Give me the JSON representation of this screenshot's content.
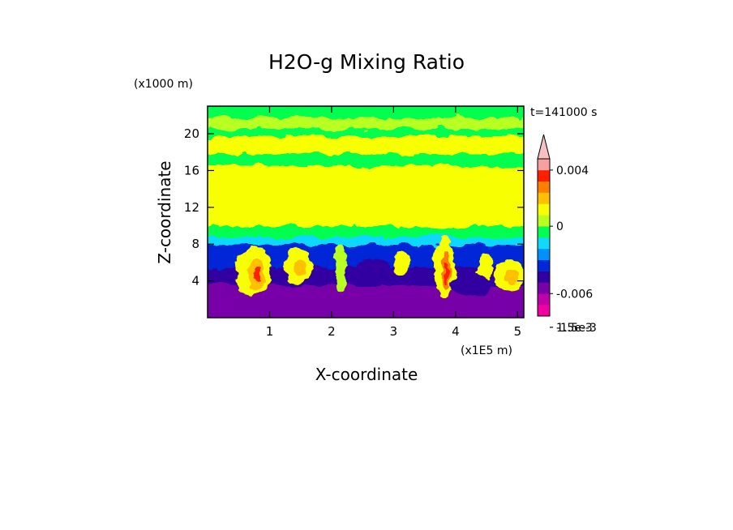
{
  "chart_data": {
    "type": "heatmap",
    "title": "H2O-g Mixing Ratio",
    "xlabel": "X-coordinate",
    "ylabel": "Z-coordinate",
    "x_unit": "(x1E5 m)",
    "y_unit": "(x1000 m)",
    "time_label": "t=141000 s",
    "xlim": [
      0,
      5.1
    ],
    "ylim": [
      0,
      23
    ],
    "x_ticks": [
      1,
      2,
      3,
      4,
      5
    ],
    "y_ticks": [
      4,
      8,
      12,
      16,
      20
    ],
    "colorbar": {
      "levels": [
        "-0.009",
        "-0.0075",
        "-0.006",
        "-0.0045",
        "-0.003",
        "-0.0022",
        "-0.0015",
        "-0.0008",
        "0",
        "0.0008",
        "0.0015",
        "0.0022",
        "0.003",
        "0.004",
        "0.005"
      ],
      "colors": [
        "#f000a0",
        "#c000a8",
        "#7800a8",
        "#3000a0",
        "#0028d8",
        "#0090ff",
        "#10d8ff",
        "#00ff50",
        "#b8ff20",
        "#f8ff00",
        "#ffc000",
        "#ff8000",
        "#ff2000",
        "#f8a0a0"
      ],
      "labels": [
        "0.004",
        "1.5e-3",
        "0",
        "-1.5e-3",
        "-0.006"
      ],
      "extend": "max"
    }
  }
}
